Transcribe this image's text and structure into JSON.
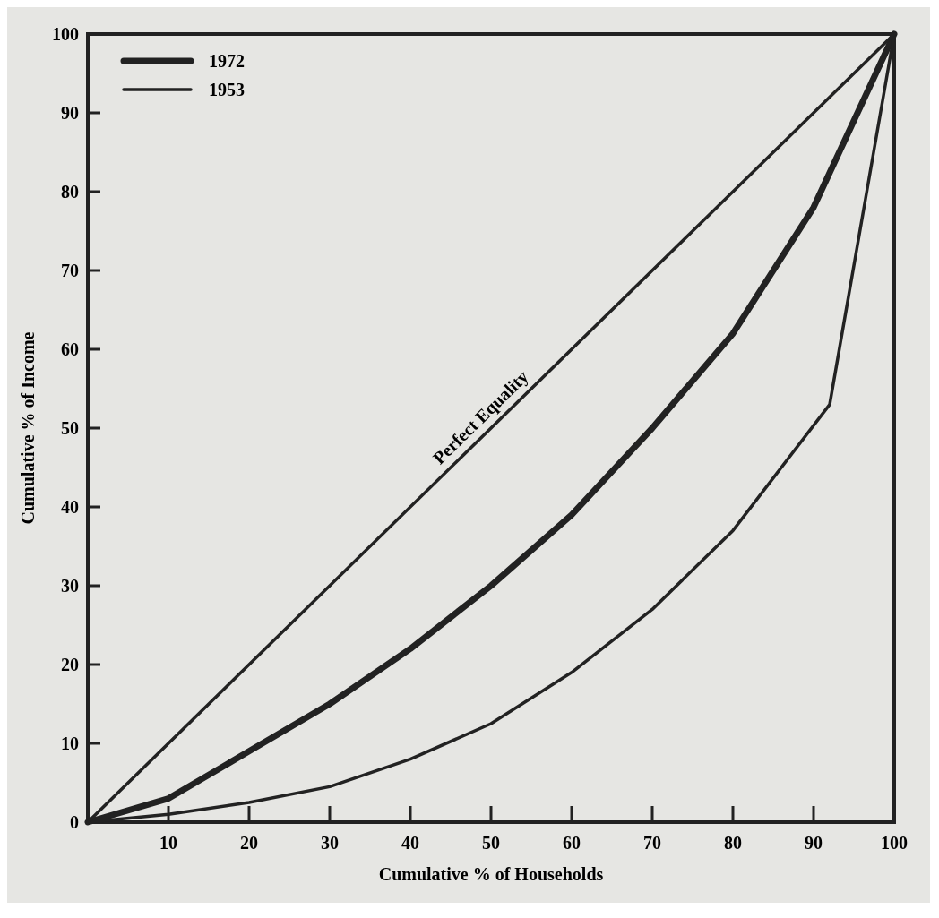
{
  "chart_data": {
    "type": "line",
    "xlabel": "Cumulative % of Households",
    "ylabel": "Cumulative % of Income",
    "xlim": [
      0,
      100
    ],
    "ylim": [
      0,
      100
    ],
    "xticks": [
      10,
      20,
      30,
      40,
      50,
      60,
      70,
      80,
      90,
      100
    ],
    "yticks": [
      0,
      10,
      20,
      30,
      40,
      50,
      60,
      70,
      80,
      90,
      100
    ],
    "grid": false,
    "legend": "top left",
    "marker": "none",
    "line_style": "solid",
    "series": [
      {
        "name": "1972",
        "color": "#222222",
        "x": [
          0,
          10,
          20,
          30,
          40,
          50,
          60,
          70,
          80,
          90,
          100
        ],
        "values": [
          0,
          3,
          9,
          15,
          22,
          30,
          39,
          50,
          62,
          78,
          100
        ]
      },
      {
        "name": "1953",
        "color": "#222222",
        "x": [
          0,
          10,
          20,
          30,
          40,
          50,
          60,
          70,
          80,
          92,
          100
        ],
        "values": [
          0,
          1,
          2.5,
          4.5,
          8,
          12.5,
          19,
          27,
          37,
          53,
          100
        ]
      },
      {
        "color": "#222222",
        "x": [
          0,
          100
        ],
        "values": [
          0,
          100
        ]
      }
    ],
    "annotations": [
      {
        "text": "Perfect Equality",
        "x": 50,
        "y": 50
      }
    ]
  }
}
